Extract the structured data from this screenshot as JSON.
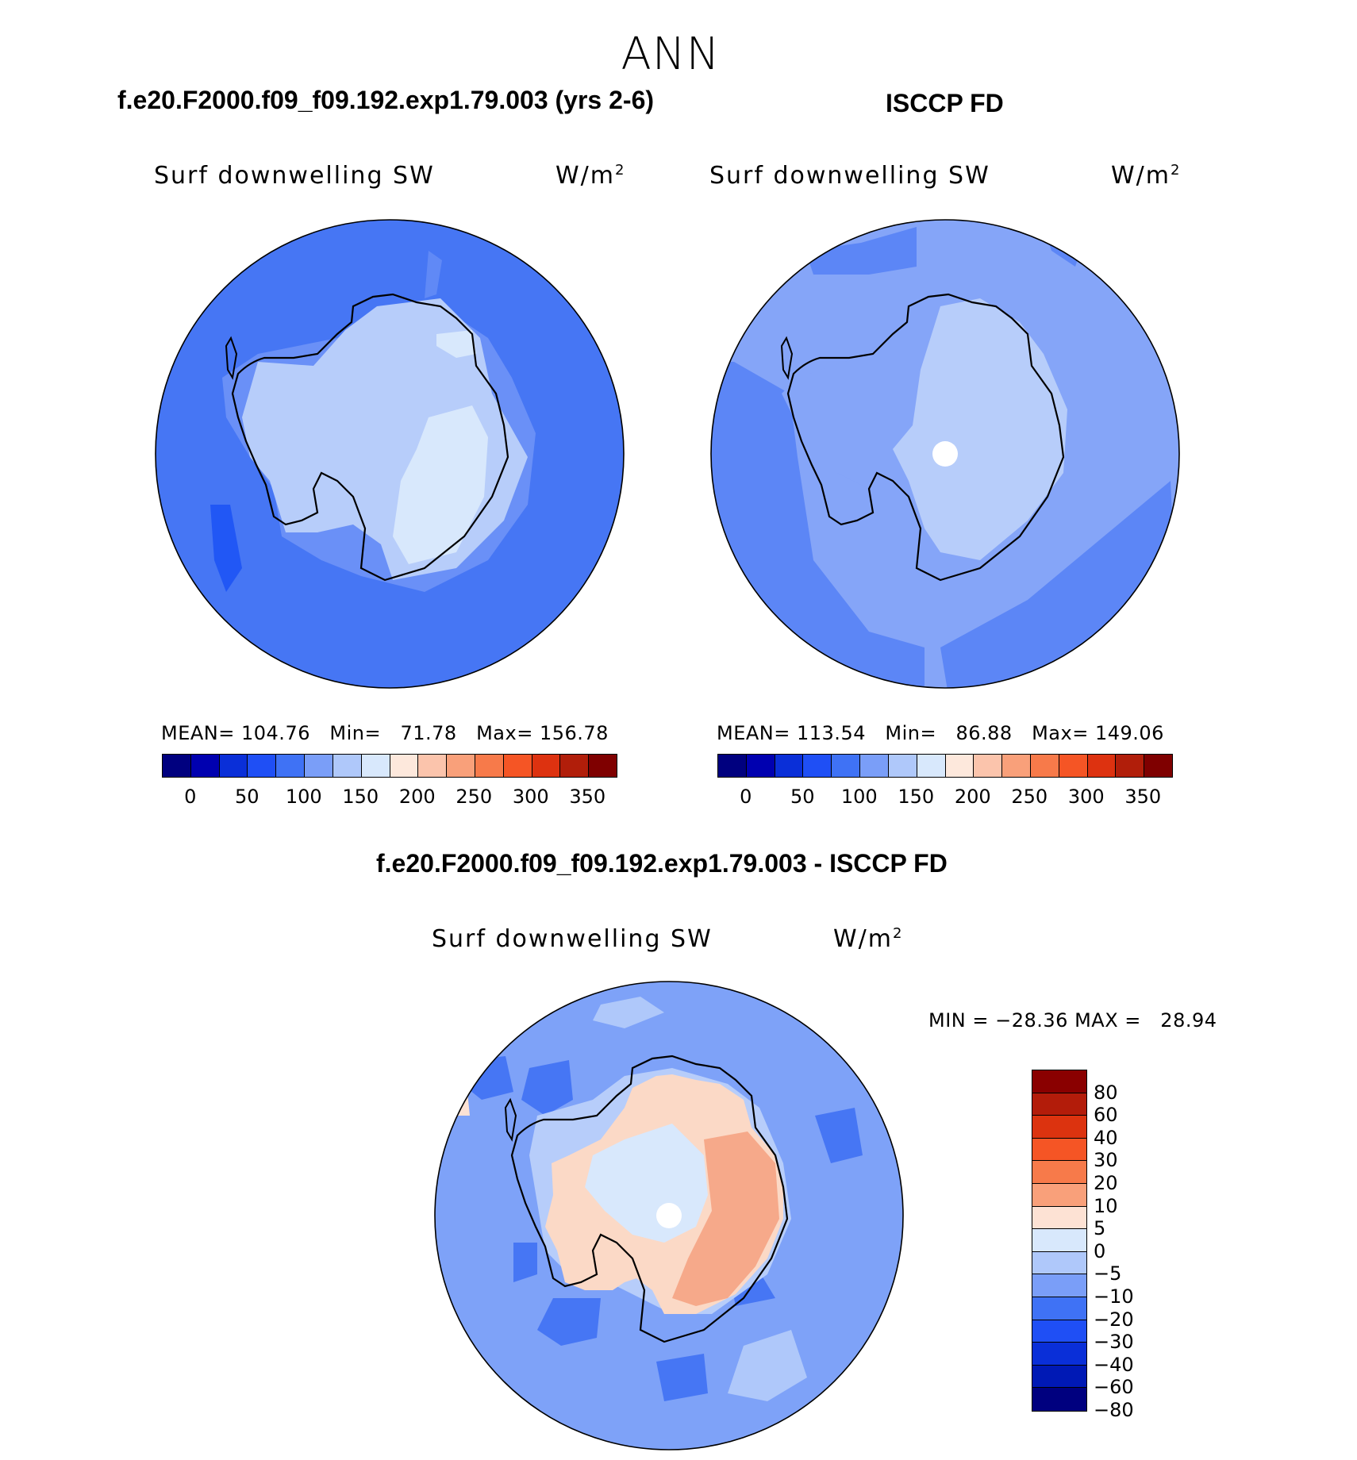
{
  "figure": {
    "season": "ANN",
    "variable": "Surf downwelling SW",
    "units": "W/m",
    "units_sup": "2"
  },
  "panels": {
    "model": {
      "title": "f.e20.F2000.f09_f09.192.exp1.79.003 (yrs 2-6)",
      "stats": {
        "mean_label": "MEAN=",
        "mean": "104.76",
        "min_label": "Min=",
        "min": "71.78",
        "max_label": "Max=",
        "max": "156.78"
      }
    },
    "obs": {
      "title": "ISCCP FD",
      "stats": {
        "mean_label": "MEAN=",
        "mean": "113.54",
        "min_label": "Min=",
        "min": "86.88",
        "max_label": "Max=",
        "max": "149.06"
      }
    },
    "diff": {
      "title": "f.e20.F2000.f09_f09.192.exp1.79.003 - ISCCP FD",
      "stats": {
        "min_label": "MIN =",
        "min": "−28.36",
        "max_label": "MAX =",
        "max": "28.94"
      }
    }
  },
  "colorbars": {
    "absolute": {
      "colors": [
        "#00007f",
        "#0000b0",
        "#0a2fd8",
        "#1f4ff5",
        "#3f72f5",
        "#7a9ef8",
        "#afc8fa",
        "#d8e8fc",
        "#fde8dc",
        "#fbc4ac",
        "#f9a07a",
        "#f77a4a",
        "#f55525",
        "#dd3210",
        "#b11e0a",
        "#7f0000"
      ],
      "labels": [
        "0",
        "50",
        "100",
        "150",
        "200",
        "250",
        "300",
        "350"
      ]
    },
    "difference": {
      "colors_top_to_bottom": [
        "#8a0000",
        "#b31c0a",
        "#dc330f",
        "#f55525",
        "#f77a4a",
        "#f9a07a",
        "#fde2d4",
        "#d8e8fc",
        "#afc8fa",
        "#7a9ef8",
        "#3f72f5",
        "#1f4ff5",
        "#0a2fd8",
        "#0019b5",
        "#00007f"
      ],
      "labels": [
        "80",
        "60",
        "40",
        "30",
        "20",
        "10",
        "5",
        "0",
        "−5",
        "−10",
        "−20",
        "−30",
        "−40",
        "−60",
        "−80"
      ]
    }
  },
  "map_colors": {
    "ocean_model": "#4676f4",
    "ocean_obs": "#85a5f8",
    "land_fill_light": "#b7cdfa",
    "land_fill_pale": "#d8e8fc",
    "ocean_band_dark": "#4d7cf4",
    "diff_ocean": "#7ea2f8",
    "diff_land_pos": "#fbd9c6",
    "diff_land_warm": "#f6a98a",
    "diff_center": "#d8e8fc"
  }
}
